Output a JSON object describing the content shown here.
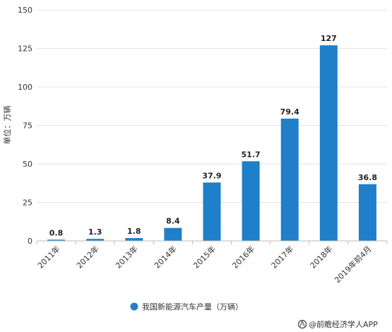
{
  "chart_data": {
    "type": "bar",
    "categories": [
      "2011年",
      "2012年",
      "2013年",
      "2014年",
      "2015年",
      "2016年",
      "2017年",
      "2018年",
      "2019年前4月"
    ],
    "series": [
      {
        "name": "我国新能源汽车产量（万辆）",
        "values": [
          0.8,
          1.3,
          1.8,
          8.4,
          37.9,
          51.7,
          79.4,
          127,
          36.8
        ],
        "labels": [
          "0.8",
          "1.3",
          "1.8",
          "8.4",
          "37.9",
          "51.7",
          "79.4",
          "127",
          "36.8"
        ],
        "color": "#1f7fc8"
      }
    ],
    "ylabel": "单位：万辆",
    "ylim": [
      0,
      150
    ],
    "yticks": [
      0,
      25,
      50,
      75,
      100,
      125,
      150
    ],
    "grid": true,
    "legend_position": "bottom-center"
  },
  "credit": {
    "text": "@前瞻经济学人APP",
    "icon": "brand-logo-icon"
  }
}
